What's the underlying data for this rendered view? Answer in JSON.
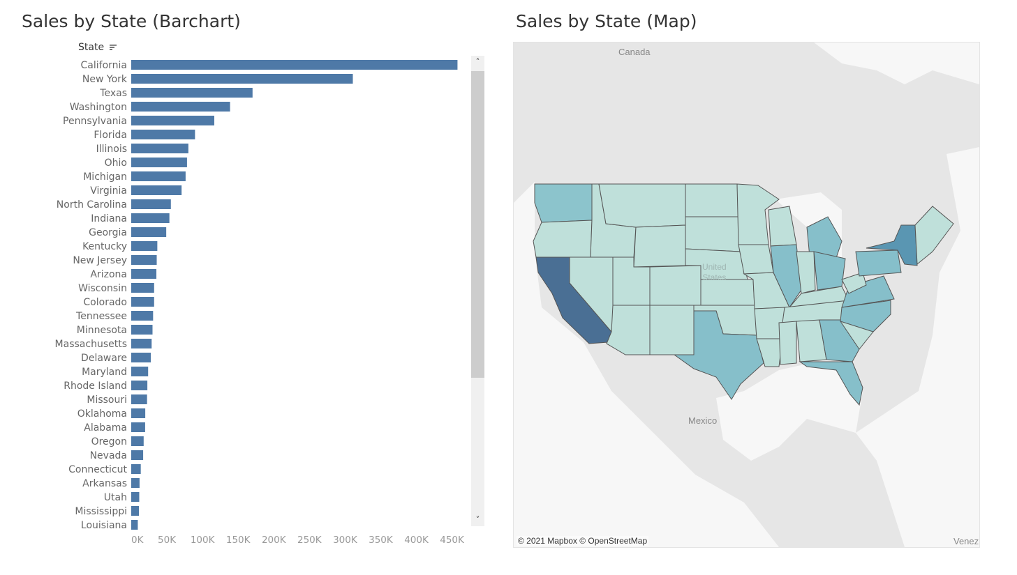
{
  "bar_panel": {
    "title": "Sales by State (Barchart)",
    "column_header": "State"
  },
  "map_panel": {
    "title": "Sales by State (Map)",
    "labels": {
      "canada": "Canada",
      "mexico": "Mexico",
      "united_states": "United\nStates",
      "venezuela": "Venez"
    },
    "credit": "© 2021 Mapbox © OpenStreetMap",
    "colors": {
      "land": "#e6e6e6",
      "water": "#f9f9f9",
      "state_low": "#bfe0da",
      "state_mid": "#86bfca",
      "state_high": "#4a6f94",
      "border": "#555555"
    }
  },
  "chart_data": {
    "type": "bar",
    "orientation": "horizontal",
    "title": "Sales by State (Barchart)",
    "ylabel": "State",
    "xlabel": "",
    "xlim": [
      0,
      470000
    ],
    "x_ticks": [
      0,
      50000,
      100000,
      150000,
      200000,
      250000,
      300000,
      350000,
      400000,
      450000
    ],
    "x_tick_labels": [
      "0K",
      "50K",
      "100K",
      "150K",
      "200K",
      "250K",
      "300K",
      "350K",
      "400K",
      "450K"
    ],
    "bar_color": "#4e79a7",
    "categories": [
      "California",
      "New York",
      "Texas",
      "Washington",
      "Pennsylvania",
      "Florida",
      "Illinois",
      "Ohio",
      "Michigan",
      "Virginia",
      "North Carolina",
      "Indiana",
      "Georgia",
      "Kentucky",
      "New Jersey",
      "Arizona",
      "Wisconsin",
      "Colorado",
      "Tennessee",
      "Minnesota",
      "Massachusetts",
      "Delaware",
      "Maryland",
      "Rhode Island",
      "Missouri",
      "Oklahoma",
      "Alabama",
      "Oregon",
      "Nevada",
      "Connecticut",
      "Arkansas",
      "Utah",
      "Mississippi",
      "Louisiana"
    ],
    "values": [
      457688,
      310876,
      170188,
      138641,
      116512,
      89474,
      80166,
      78258,
      76270,
      70637,
      55603,
      53555,
      49096,
      36592,
      35764,
      35282,
      32115,
      32108,
      30662,
      29863,
      28634,
      27451,
      23706,
      22628,
      22205,
      19683,
      19511,
      17431,
      16729,
      13384,
      11678,
      11220,
      10771,
      9217
    ]
  }
}
